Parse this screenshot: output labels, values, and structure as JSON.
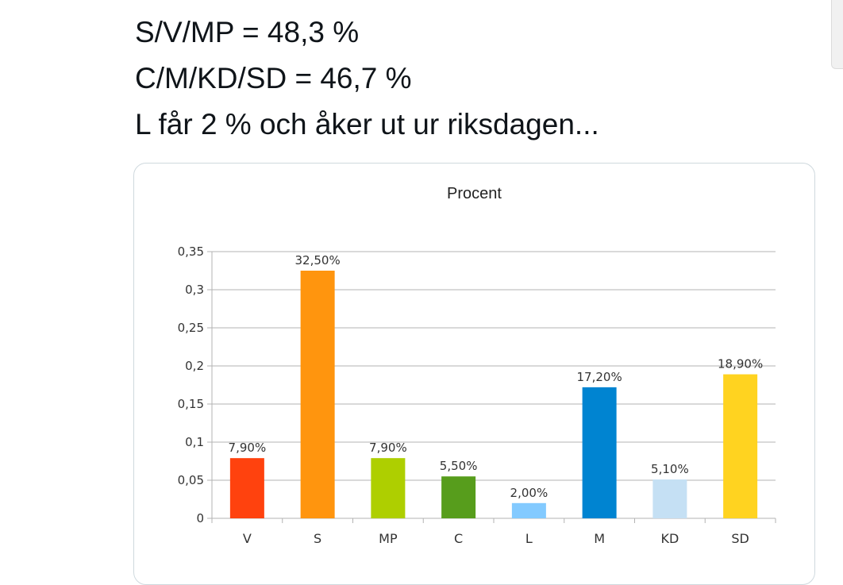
{
  "tweet": {
    "lines": [
      "S/V/MP = 48,3 %",
      "C/M/KD/SD = 46,7 %",
      "L får 2 % och åker ut ur riksdagen..."
    ]
  },
  "chart_data": {
    "type": "bar",
    "title": "Procent",
    "xlabel": "",
    "ylabel": "",
    "categories": [
      "V",
      "S",
      "MP",
      "C",
      "L",
      "M",
      "KD",
      "SD"
    ],
    "values": [
      0.079,
      0.325,
      0.079,
      0.055,
      0.02,
      0.172,
      0.051,
      0.189
    ],
    "data_labels": [
      "7,90%",
      "32,50%",
      "7,90%",
      "5,50%",
      "2,00%",
      "17,20%",
      "5,10%",
      "18,90%"
    ],
    "colors": [
      "#ff420e",
      "#ff950e",
      "#aecf00",
      "#579d1c",
      "#83caff",
      "#0084d1",
      "#c5e0f4",
      "#ffd320"
    ],
    "ylim": [
      0,
      0.35
    ],
    "yticks": [
      0,
      0.05,
      0.1,
      0.15,
      0.2,
      0.25,
      0.3,
      0.35
    ],
    "ytick_labels": [
      "0",
      "0,05",
      "0,1",
      "0,15",
      "0,2",
      "0,25",
      "0,3",
      "0,35"
    ],
    "grid": true,
    "legend": "none"
  }
}
